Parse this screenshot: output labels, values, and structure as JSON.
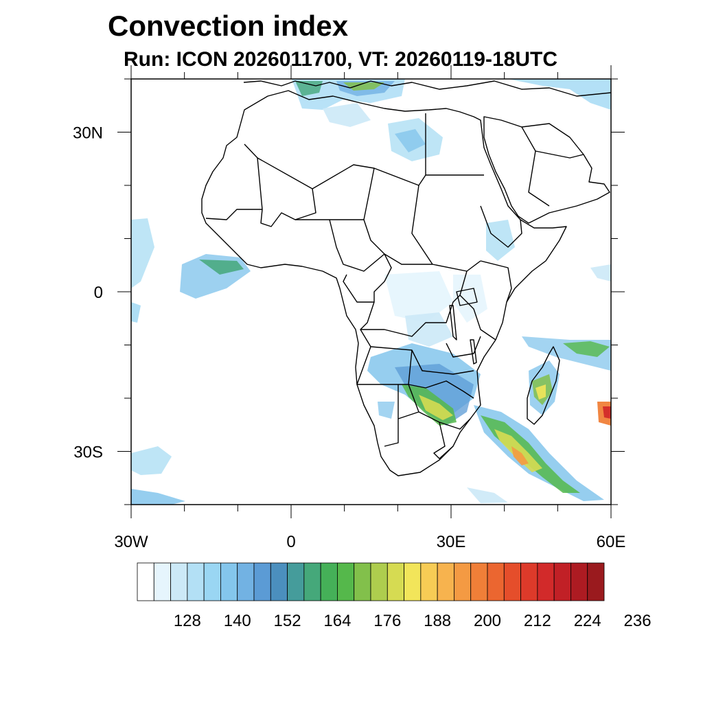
{
  "title": "Convection index",
  "subtitle": "Run: ICON 2026011700,  VT: 20260119-18UTC",
  "map": {
    "extent": {
      "lon_min": -30,
      "lon_max": 60,
      "lat_min": -40,
      "lat_max": 40
    },
    "lon_ticks": [
      {
        "value": -30,
        "label": "30W"
      },
      {
        "value": 0,
        "label": "0"
      },
      {
        "value": 30,
        "label": "30E"
      },
      {
        "value": 60,
        "label": "60E"
      }
    ],
    "lat_ticks": [
      {
        "value": 30,
        "label": "30N"
      },
      {
        "value": 0,
        "label": "0"
      },
      {
        "value": -30,
        "label": "30S"
      }
    ]
  },
  "colorbar": {
    "colors": [
      "#ffffff",
      "#e6f5fd",
      "#cce9f7",
      "#b3e0f5",
      "#9ad6f3",
      "#84c6ec",
      "#72b2e3",
      "#5b9bd5",
      "#4b8fbe",
      "#459c9b",
      "#45a87a",
      "#45b058",
      "#55b84b",
      "#82c04b",
      "#aecd4e",
      "#d6db52",
      "#f2e55a",
      "#f7cc55",
      "#f7b34e",
      "#f49a43",
      "#f07f38",
      "#eb6630",
      "#e54e2b",
      "#dd3a2a",
      "#d22a2a",
      "#c12026",
      "#ad1b22",
      "#9a1a1e"
    ],
    "labels": [
      "128",
      "140",
      "152",
      "164",
      "176",
      "188",
      "200",
      "212",
      "224",
      "236"
    ]
  }
}
